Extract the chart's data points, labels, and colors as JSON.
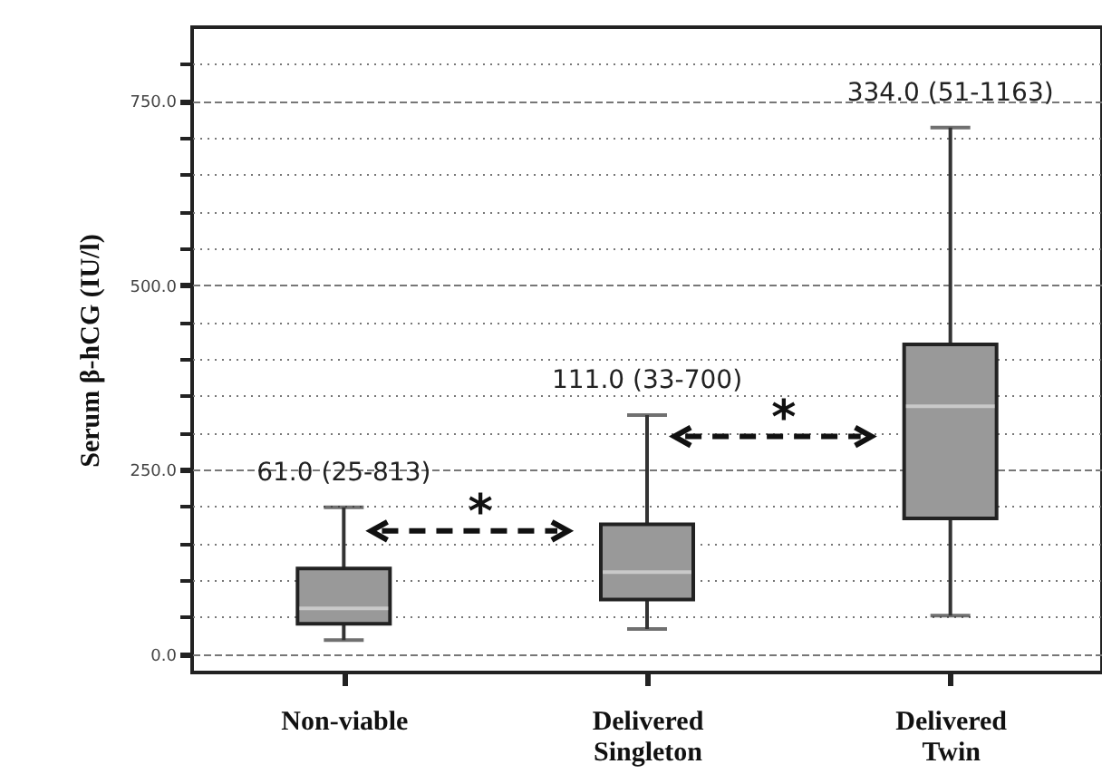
{
  "chart_data": {
    "type": "box",
    "ylabel": "Serum β-hCG (IU/l)",
    "categories": [
      "Non-viable",
      "Delivered Singleton",
      "Delivered Twin"
    ],
    "boxes": [
      {
        "low": 19,
        "q1": 41,
        "median": 62,
        "q3": 116,
        "high": 199
      },
      {
        "low": 34,
        "q1": 74,
        "median": 111,
        "q3": 176,
        "high": 324
      },
      {
        "low": 52,
        "q1": 184,
        "median": 336,
        "q3": 420,
        "high": 714
      }
    ],
    "color": "#999999",
    "ylim": [
      -25,
      850
    ],
    "yticks": [
      {
        "value": 0,
        "label": "0.0"
      },
      {
        "value": 50,
        "label": null
      },
      {
        "value": 100,
        "label": null
      },
      {
        "value": 150,
        "label": null
      },
      {
        "value": 200,
        "label": null
      },
      {
        "value": 250,
        "label": "250.0"
      },
      {
        "value": 300,
        "label": null
      },
      {
        "value": 350,
        "label": null
      },
      {
        "value": 400,
        "label": null
      },
      {
        "value": 450,
        "label": null
      },
      {
        "value": 500,
        "label": "500.0"
      },
      {
        "value": 550,
        "label": null
      },
      {
        "value": 600,
        "label": null
      },
      {
        "value": 650,
        "label": null
      },
      {
        "value": 700,
        "label": null
      },
      {
        "value": 750,
        "label": "750.0"
      },
      {
        "value": 800,
        "label": null
      }
    ],
    "grid": true,
    "annotations": [
      "61.0 (25-813)",
      "111.0 (33-700)",
      "334.0 (51-1163)",
      "*",
      "*"
    ]
  }
}
